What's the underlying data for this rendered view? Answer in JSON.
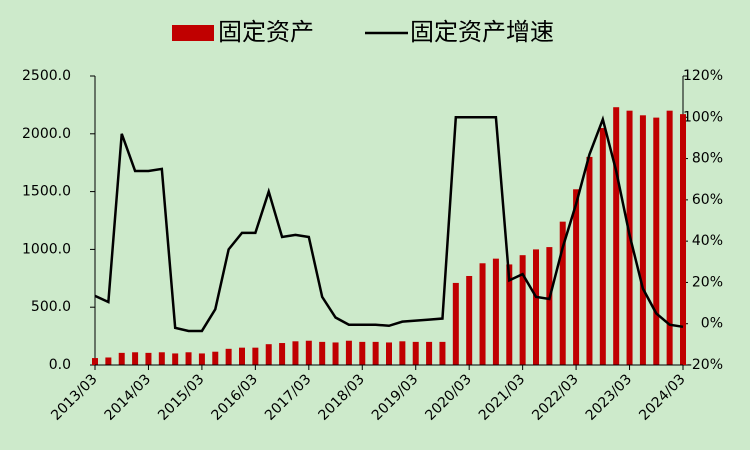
{
  "chart_data": {
    "type": "bar_line",
    "series": [
      {
        "name": "固定资产",
        "type": "bar",
        "color": "#c00000",
        "values": [
          60,
          65,
          105,
          110,
          105,
          110,
          100,
          110,
          100,
          115,
          140,
          150,
          150,
          180,
          190,
          205,
          210,
          200,
          195,
          210,
          200,
          200,
          195,
          205,
          200,
          200,
          200,
          710,
          770,
          880,
          920,
          870,
          950,
          1000,
          1020,
          1240,
          1520,
          1800,
          2050,
          2230,
          2200,
          2160,
          2140,
          2200,
          2170
        ]
      },
      {
        "name": "固定资产增速",
        "type": "line",
        "axis": "y2",
        "color": "#000000",
        "values": [
          13.5,
          10.5,
          92,
          74,
          74,
          75,
          -2,
          -3.5,
          -3.5,
          7,
          36,
          44,
          44,
          64,
          42,
          43,
          42,
          13,
          3,
          -0.5,
          -0.5,
          -0.5,
          -1,
          1,
          1.5,
          2,
          2.5,
          100,
          100,
          100,
          100,
          21,
          24,
          13,
          12,
          37,
          58,
          82,
          99,
          74,
          43,
          17,
          5,
          -0.5,
          -1.5
        ]
      }
    ],
    "categories": [
      "2013/03",
      null,
      null,
      null,
      "2014/03",
      null,
      null,
      null,
      "2015/03",
      null,
      null,
      null,
      "2016/03",
      null,
      null,
      null,
      "2017/03",
      null,
      null,
      null,
      "2018/03",
      null,
      null,
      null,
      "2019/03",
      null,
      null,
      null,
      "2020/03",
      null,
      null,
      null,
      "2021/03",
      null,
      null,
      null,
      "2022/03",
      null,
      null,
      null,
      "2023/03",
      null,
      null,
      null,
      "2024/03"
    ],
    "ylim": [
      0,
      2500
    ],
    "yticks": [
      {
        "value": 0,
        "label": "0.0"
      },
      {
        "value": 500,
        "label": "500.0"
      },
      {
        "value": 1000,
        "label": "1000.0"
      },
      {
        "value": 1500,
        "label": "1500.0"
      },
      {
        "value": 2000,
        "label": "2000.0"
      },
      {
        "value": 2500,
        "label": "2500.0"
      }
    ],
    "y2lim": [
      -20,
      120
    ],
    "y2ticks": [
      {
        "value": -20,
        "label": "-20%"
      },
      {
        "value": 0,
        "label": "0%"
      },
      {
        "value": 20,
        "label": "20%"
      },
      {
        "value": 40,
        "label": "40%"
      },
      {
        "value": 60,
        "label": "60%"
      },
      {
        "value": 80,
        "label": "80%"
      },
      {
        "value": 100,
        "label": "100%"
      },
      {
        "value": 120,
        "label": "120%"
      }
    ],
    "legend": "top"
  }
}
